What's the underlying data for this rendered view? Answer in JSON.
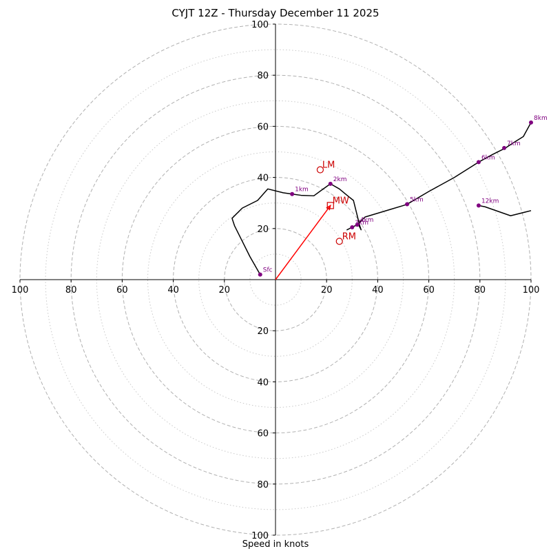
{
  "chart_data": {
    "type": "hodograph",
    "title": "CYJT 12Z - Thursday December 11 2025",
    "xlabel": "Speed in knots",
    "xlim": [
      -100,
      100
    ],
    "ylim": [
      -100,
      100
    ],
    "major_rings": [
      20,
      40,
      60,
      80,
      100
    ],
    "minor_rings": [
      10,
      30,
      50,
      70,
      90
    ],
    "x_tick_labels": [
      "100",
      "80",
      "60",
      "40",
      "20",
      "20",
      "40",
      "60",
      "80",
      "100"
    ],
    "x_tick_values": [
      -100,
      -80,
      -60,
      -40,
      -20,
      20,
      40,
      60,
      80,
      100
    ],
    "y_tick_labels": [
      "100",
      "80",
      "60",
      "40",
      "20",
      "20",
      "40",
      "60",
      "80",
      "100"
    ],
    "y_tick_values": [
      100,
      80,
      60,
      40,
      20,
      -20,
      -40,
      -60,
      -80,
      -100
    ],
    "grid": true,
    "colors": {
      "trace": "#000000",
      "height_marker": "#800080",
      "storm_motion": "#cc0000",
      "major_ring": "#b0b0b0",
      "minor_ring": "#c8c8c8"
    },
    "trace": [
      [
        -6,
        2
      ],
      [
        -10,
        9
      ],
      [
        -13,
        15
      ],
      [
        -16,
        21
      ],
      [
        -17,
        24
      ],
      [
        -13,
        28
      ],
      [
        -7,
        31
      ],
      [
        -3,
        35.5
      ],
      [
        3,
        34
      ],
      [
        6.5,
        33.5
      ],
      [
        10,
        33
      ],
      [
        15,
        32.8
      ],
      [
        18,
        35
      ],
      [
        21.5,
        37.5
      ],
      [
        25,
        35.5
      ],
      [
        28,
        33
      ],
      [
        30.5,
        31
      ],
      [
        31.5,
        27
      ],
      [
        32.5,
        23
      ],
      [
        33,
        21
      ],
      [
        33.5,
        19.5
      ],
      [
        32.5,
        21.5
      ],
      [
        31,
        21
      ],
      [
        30,
        20.5
      ],
      [
        28,
        19.5
      ],
      [
        32,
        21.5
      ],
      [
        35,
        24.5
      ],
      [
        45,
        27.5
      ],
      [
        50,
        29
      ],
      [
        51.5,
        29.5
      ],
      [
        60,
        34.5
      ],
      [
        70,
        40
      ],
      [
        79.5,
        46
      ],
      [
        85,
        49
      ],
      [
        90,
        51.5
      ],
      [
        93,
        53.5
      ],
      [
        97,
        56
      ],
      [
        100,
        61.5
      ]
    ],
    "upper_trace": [
      [
        79.5,
        29
      ],
      [
        82,
        28.5
      ],
      [
        92,
        25
      ],
      [
        100,
        27
      ]
    ],
    "height_markers": [
      {
        "label": "Sfc",
        "x": -6,
        "y": 2
      },
      {
        "label": "1km",
        "x": 6.5,
        "y": 33.5
      },
      {
        "label": "2km",
        "x": 21.5,
        "y": 37.5
      },
      {
        "label": "3km",
        "x": 30,
        "y": 20.5
      },
      {
        "label": "4km",
        "x": 32,
        "y": 21.5
      },
      {
        "label": "5km",
        "x": 51.5,
        "y": 29.5
      },
      {
        "label": "6km",
        "x": 79.5,
        "y": 46
      },
      {
        "label": "7km",
        "x": 89.5,
        "y": 51.5
      },
      {
        "label": "8km",
        "x": 100,
        "y": 61.5
      },
      {
        "label": "12km",
        "x": 79.5,
        "y": 29
      }
    ],
    "storm_motion": {
      "mean_wind": {
        "label": "MW",
        "x": 21.5,
        "y": 29
      },
      "left_mover": {
        "label": "LM",
        "x": 17.5,
        "y": 43
      },
      "right_mover": {
        "label": "RM",
        "x": 25,
        "y": 15
      }
    }
  }
}
